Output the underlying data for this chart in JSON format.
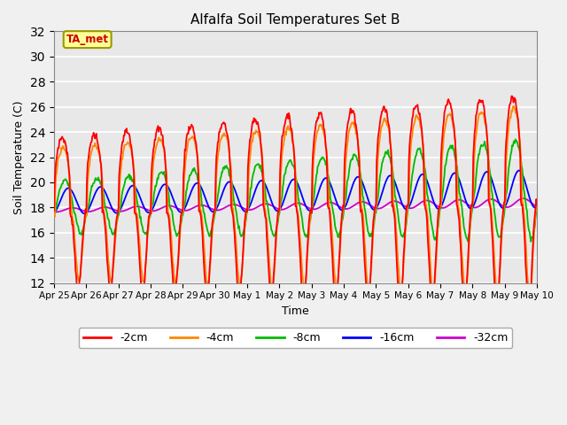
{
  "title": "Alfalfa Soil Temperatures Set B",
  "xlabel": "Time",
  "ylabel": "Soil Temperature (C)",
  "ylim": [
    12,
    32
  ],
  "yticks": [
    12,
    14,
    16,
    18,
    20,
    22,
    24,
    26,
    28,
    30,
    32
  ],
  "colors": {
    "-2cm": "#ff0000",
    "-4cm": "#ff8800",
    "-8cm": "#00bb00",
    "-16cm": "#0000ff",
    "-32cm": "#cc00cc"
  },
  "legend_label": "TA_met",
  "legend_box_facecolor": "#ffff99",
  "legend_box_edgecolor": "#999900",
  "plot_bg_color": "#e8e8e8",
  "fig_bg_color": "#f0f0f0",
  "grid_color": "#ffffff",
  "xtick_labels": [
    "Apr 25",
    "Apr 26",
    "Apr 27",
    "Apr 28",
    "Apr 29",
    "Apr 30",
    "May 1",
    "May 2",
    "May 3",
    "May 4",
    "May 5",
    "May 6",
    "May 7",
    "May 8",
    "May 9",
    "May 10"
  ],
  "figsize": [
    6.4,
    4.8
  ],
  "dpi": 100
}
